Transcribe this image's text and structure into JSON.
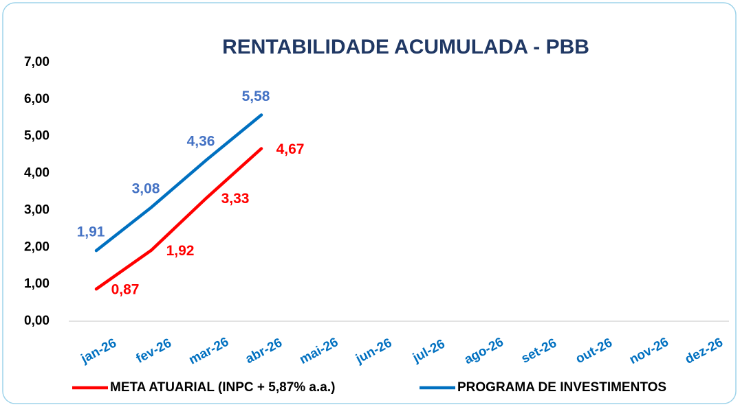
{
  "chart_data": {
    "type": "line",
    "title": "RENTABILIDADE ACUMULADA - PBB",
    "categories": [
      "jan-26",
      "fev-26",
      "mar-26",
      "abr-26",
      "mai-26",
      "jun-26",
      "jul-26",
      "ago-26",
      "set-26",
      "out-26",
      "nov-26",
      "dez-26"
    ],
    "series": [
      {
        "name": "META ATUARIAL (INPC + 5,87% a.a.)",
        "color": "#ff0000",
        "label_color": "#ff0000",
        "values": [
          0.87,
          1.92,
          3.33,
          4.67,
          null,
          null,
          null,
          null,
          null,
          null,
          null,
          null
        ],
        "value_labels": [
          "0,87",
          "1,92",
          "3,33",
          "4,67",
          null,
          null,
          null,
          null,
          null,
          null,
          null,
          null
        ]
      },
      {
        "name": "PROGRAMA DE INVESTIMENTOS",
        "color": "#0070c0",
        "label_color": "#4472c4",
        "values": [
          1.91,
          3.08,
          4.36,
          5.58,
          null,
          null,
          null,
          null,
          null,
          null,
          null,
          null
        ],
        "value_labels": [
          "1,91",
          "3,08",
          "4,36",
          "5,58",
          null,
          null,
          null,
          null,
          null,
          null,
          null,
          null
        ]
      }
    ],
    "ylim": [
      0,
      7
    ],
    "yticks": [
      {
        "value": 0,
        "label": "0,00"
      },
      {
        "value": 1,
        "label": "1,00"
      },
      {
        "value": 2,
        "label": "2,00"
      },
      {
        "value": 3,
        "label": "3,00"
      },
      {
        "value": 4,
        "label": "4,00"
      },
      {
        "value": 5,
        "label": "5,00"
      },
      {
        "value": 6,
        "label": "6,00"
      },
      {
        "value": 7,
        "label": "7,00"
      }
    ],
    "grid": false,
    "legend": "bottom"
  }
}
